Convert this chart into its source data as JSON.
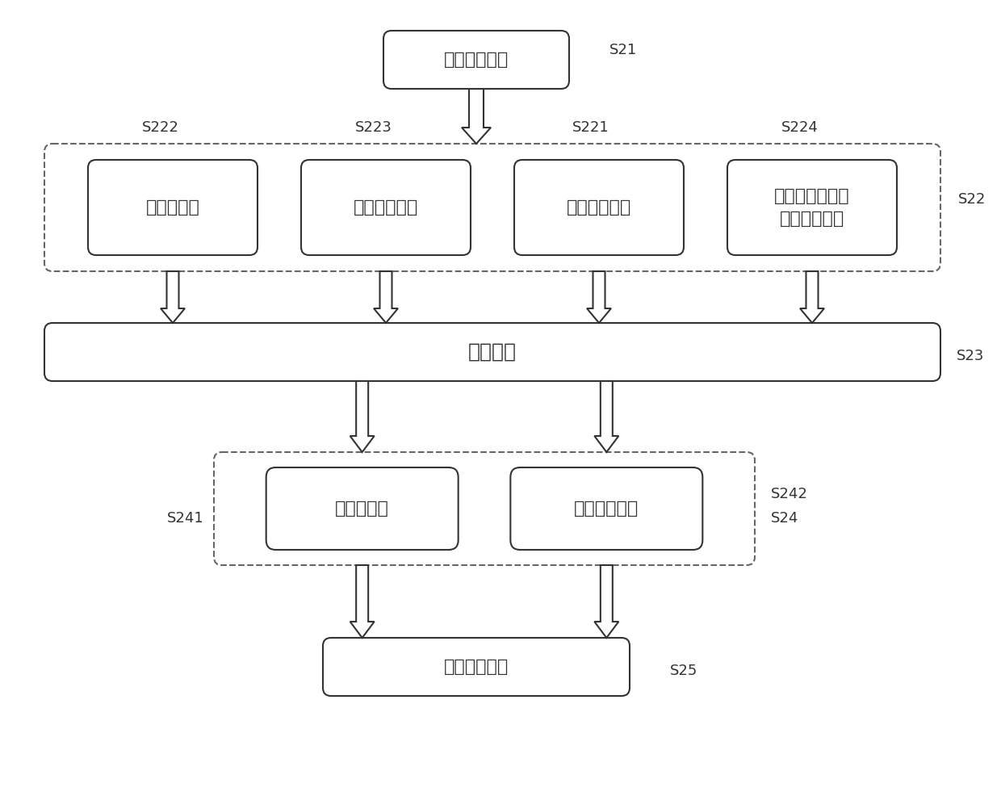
{
  "bg_color": "#ffffff",
  "line_color": "#333333",
  "box_fill": "#ffffff",
  "font_color": "#333333",
  "font_size_main": 16,
  "font_size_label": 13,
  "box1_text": "行为级别描述",
  "box2a_text": "原始单元库",
  "box2b_text": "工艺设计表格",
  "box2c_text": "硬件级别描述",
  "box2d_text": "芯片应用在设计\n上的限制条件",
  "box3_text": "合成引擎",
  "box4a_text": "标准单元库",
  "box4b_text": "元件级别描述",
  "box5_text": "版图级别描述",
  "label_s21": "S21",
  "label_s22": "S22",
  "label_s23": "S23",
  "label_s24": "S24",
  "label_s25": "S25",
  "label_s221": "S221",
  "label_s222": "S222",
  "label_s223": "S223",
  "label_s224": "S224",
  "label_s241": "S241",
  "label_s242": "S242"
}
